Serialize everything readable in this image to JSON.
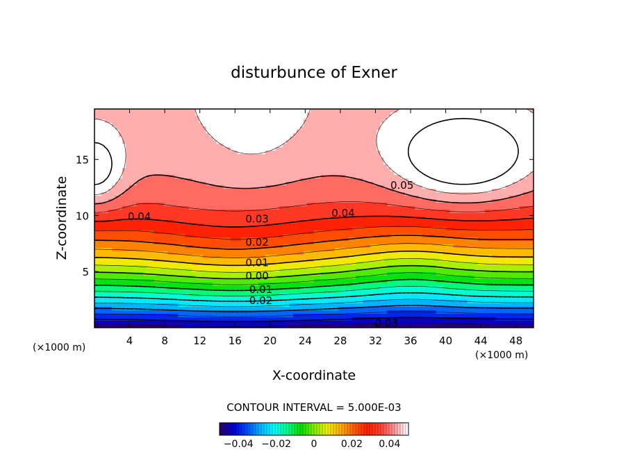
{
  "chart_data": {
    "type": "contour",
    "title": "disturbunce of Exner",
    "xlabel": "X-coordinate",
    "ylabel": "Z-coordinate",
    "x_unit_label": "(×1000 m)",
    "y_unit_label": "(×1000 m)",
    "xlim": [
      0,
      50
    ],
    "ylim": [
      0,
      19.5
    ],
    "x_ticks": [
      4,
      8,
      12,
      16,
      20,
      24,
      28,
      32,
      36,
      40,
      44,
      48
    ],
    "y_ticks": [
      5,
      10,
      15
    ],
    "contour_interval_text": "CONTOUR INTERVAL = 5.000E-03",
    "contour_interval": 0.005,
    "value_range": [
      -0.05,
      0.05
    ],
    "contour_labels": [
      {
        "text": "0.05",
        "x": 33.7,
        "z": 12.7
      },
      {
        "text": "0.04",
        "x": 3.8,
        "z": 9.9
      },
      {
        "text": "0.04",
        "x": 27.0,
        "z": 10.2
      },
      {
        "text": "0.03",
        "x": 17.2,
        "z": 9.7
      },
      {
        "text": "0.02",
        "x": 17.2,
        "z": 7.6
      },
      {
        "text": "0.01",
        "x": 17.2,
        "z": 5.8
      },
      {
        "text": "0.00",
        "x": 17.2,
        "z": 4.6
      },
      {
        "text": "-0.01",
        "x": 17.2,
        "z": 3.4
      },
      {
        "text": "-0.02",
        "x": 17.2,
        "z": 2.4
      },
      {
        "text": "-0.03",
        "x": 31.5,
        "z": 0.4
      }
    ],
    "colorbar": {
      "ticks": [
        -0.04,
        -0.02,
        0,
        0.02,
        0.04
      ],
      "tick_labels": [
        "−0.04",
        "−0.02",
        "0",
        "0.02",
        "0.04"
      ]
    },
    "colormap": [
      "#2a0070",
      "#0000d8",
      "#0050ff",
      "#00b8ff",
      "#00ffff",
      "#00ff90",
      "#00e000",
      "#80f000",
      "#f0f000",
      "#ffb000",
      "#ff6000",
      "#ff2000",
      "#ff4030",
      "#ff9090",
      "#ffffff"
    ]
  }
}
